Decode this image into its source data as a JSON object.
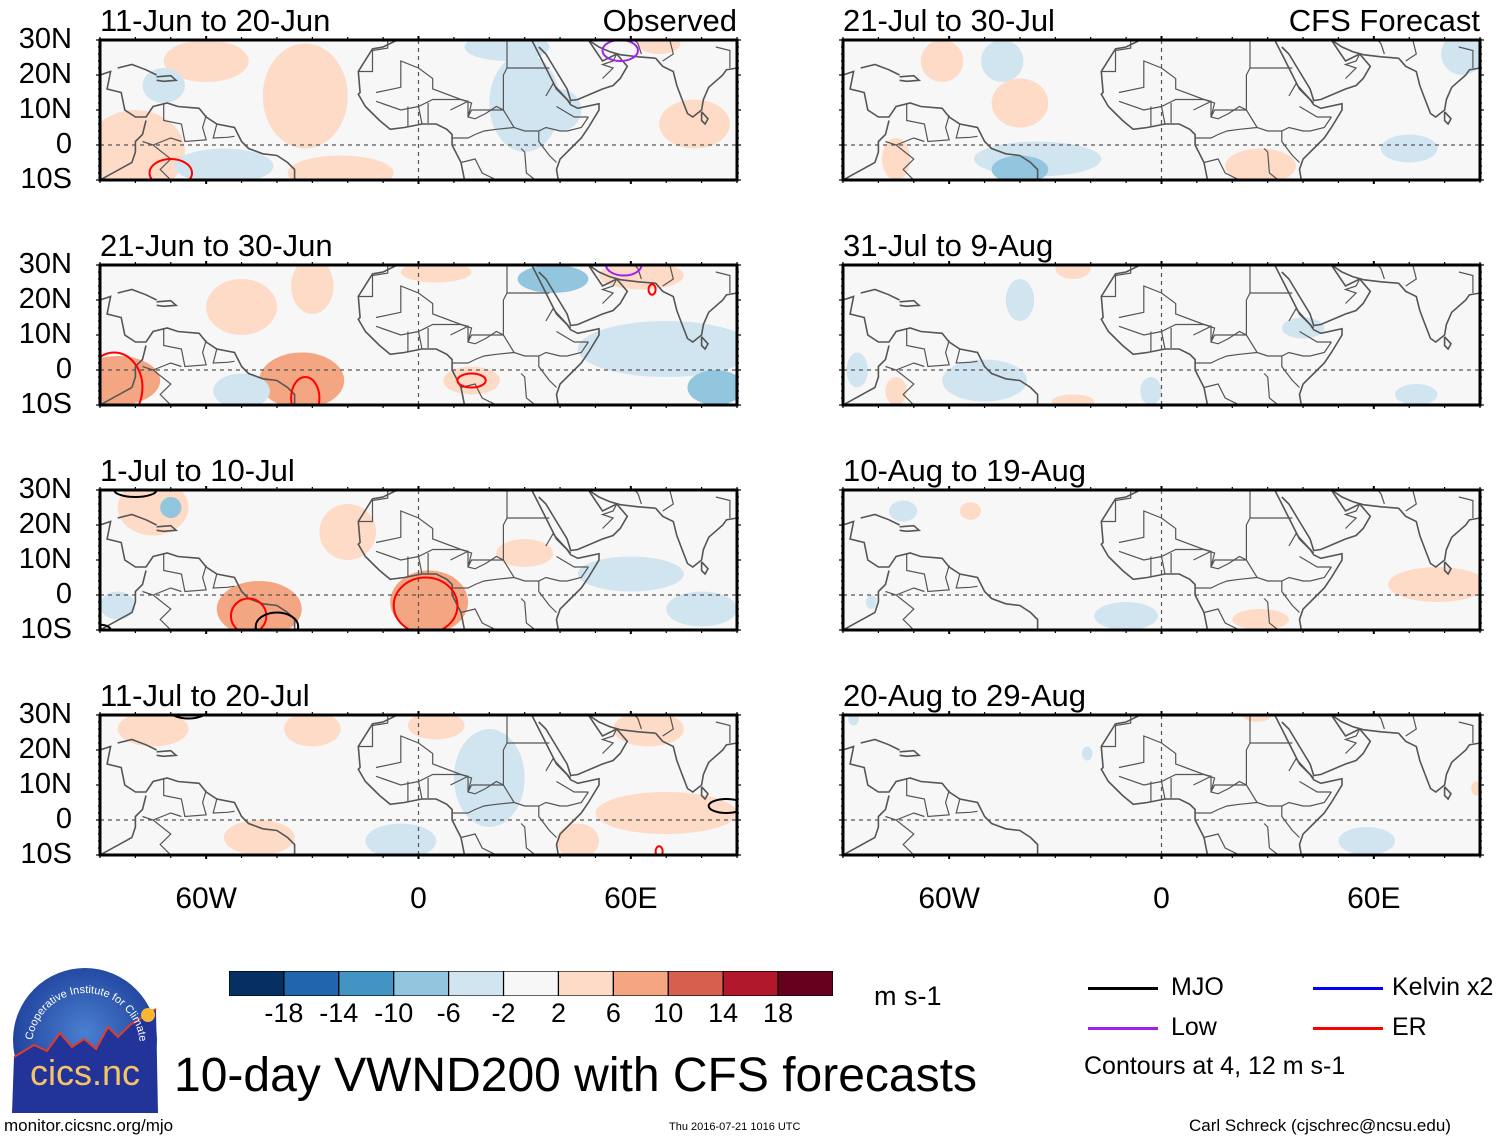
{
  "chart_data": {
    "type": "heatmap",
    "title": "10-day VWND200 with CFS forecasts",
    "variable": "VWND200 anomaly",
    "units": "m s-1",
    "lon_range": [
      -90,
      90
    ],
    "lat_range": [
      -10,
      30
    ],
    "lat_ticks": [
      {
        "value": 30,
        "label": "30N"
      },
      {
        "value": 20,
        "label": "20N"
      },
      {
        "value": 10,
        "label": "10N"
      },
      {
        "value": 0,
        "label": "0"
      },
      {
        "value": -10,
        "label": "10S"
      }
    ],
    "lon_ticks": [
      {
        "value": -60,
        "label": "60W"
      },
      {
        "value": 0,
        "label": "0"
      },
      {
        "value": 60,
        "label": "60E"
      }
    ],
    "colorbar": {
      "levels": [
        "-18",
        "-14",
        "-10",
        "-6",
        "-2",
        "2",
        "6",
        "10",
        "14",
        "18"
      ],
      "colors": [
        "#053061",
        "#2166ac",
        "#4393c3",
        "#92c5de",
        "#d1e5f0",
        "#f7f7f7",
        "#fddbc7",
        "#f4a582",
        "#d6604d",
        "#b2182b",
        "#67001f"
      ]
    },
    "contour_legend": [
      {
        "name": "MJO",
        "color": "#000000"
      },
      {
        "name": "Kelvin x2",
        "color": "#0000ff"
      },
      {
        "name": "Low",
        "color": "#a020f0"
      },
      {
        "name": "ER",
        "color": "#ff0000"
      }
    ],
    "contour_note": "Contours at 4, 12 m s-1",
    "columns": [
      {
        "tag": "Observed"
      },
      {
        "tag": "CFS Forecast"
      }
    ],
    "panels": [
      {
        "column": 0,
        "row": 0,
        "period": "11-Jun to 20-Jun",
        "anomalies": [
          {
            "lon": -60,
            "lat": 24,
            "rlon": 12,
            "rlat": 6,
            "value": 3
          },
          {
            "lon": -32,
            "lat": 14,
            "rlon": 12,
            "rlat": 15,
            "value": 3
          },
          {
            "lon": -80,
            "lat": -2,
            "rlon": 14,
            "rlat": 12,
            "value": 3
          },
          {
            "lon": -22,
            "lat": -8,
            "rlon": 15,
            "rlat": 5,
            "value": 3
          },
          {
            "lon": -55,
            "lat": -6,
            "rlon": 14,
            "rlat": 5,
            "value": -4
          },
          {
            "lon": -72,
            "lat": 17,
            "rlon": 6,
            "rlat": 5,
            "value": -4
          },
          {
            "lon": 30,
            "lat": 12,
            "rlon": 10,
            "rlat": 14,
            "value": -4
          },
          {
            "lon": 40,
            "lat": 10,
            "rlon": 6,
            "rlat": 6,
            "value": -4
          },
          {
            "lon": 78,
            "lat": 6,
            "rlon": 10,
            "rlat": 7,
            "value": 3
          },
          {
            "lon": 25,
            "lat": 28,
            "rlon": 12,
            "rlat": 4,
            "value": -3
          },
          {
            "lon": 68,
            "lat": 29,
            "rlon": 6,
            "rlat": 3,
            "value": 3
          }
        ],
        "contours": [
          {
            "type": "ER",
            "lon": -70,
            "lat": -8,
            "rlon": 6,
            "rlat": 4
          },
          {
            "type": "Low",
            "lon": 57,
            "lat": 27,
            "rlon": 5,
            "rlat": 3
          }
        ]
      },
      {
        "column": 0,
        "row": 1,
        "period": "21-Jun to 30-Jun",
        "anomalies": [
          {
            "lon": -85,
            "lat": -3,
            "rlon": 12,
            "rlat": 7,
            "value": 7
          },
          {
            "lon": -50,
            "lat": 18,
            "rlon": 10,
            "rlat": 8,
            "value": 4
          },
          {
            "lon": -30,
            "lat": 24,
            "rlon": 6,
            "rlat": 8,
            "value": 6
          },
          {
            "lon": -33,
            "lat": -3,
            "rlon": 12,
            "rlat": 8,
            "value": 7
          },
          {
            "lon": -50,
            "lat": -6,
            "rlon": 8,
            "rlat": 5,
            "value": -4
          },
          {
            "lon": 5,
            "lat": 28,
            "rlon": 10,
            "rlat": 3,
            "value": 3
          },
          {
            "lon": 70,
            "lat": 6,
            "rlon": 25,
            "rlat": 8,
            "value": -4
          },
          {
            "lon": 84,
            "lat": -5,
            "rlon": 8,
            "rlat": 5,
            "value": -8
          },
          {
            "lon": 63,
            "lat": 27,
            "rlon": 12,
            "rlat": 4,
            "value": 6
          },
          {
            "lon": 38,
            "lat": 26,
            "rlon": 10,
            "rlat": 4,
            "value": -6
          },
          {
            "lon": 15,
            "lat": -3,
            "rlon": 8,
            "rlat": 4,
            "value": 3
          }
        ],
        "contours": [
          {
            "type": "ER",
            "lon": -86,
            "lat": -5,
            "rlon": 8,
            "rlat": 10
          },
          {
            "type": "ER",
            "lon": -32,
            "lat": -8,
            "rlon": 4,
            "rlat": 6
          },
          {
            "type": "ER",
            "lon": 15,
            "lat": -3,
            "rlon": 4,
            "rlat": 2
          },
          {
            "type": "Low",
            "lon": 58,
            "lat": 30,
            "rlon": 5,
            "rlat": 3
          },
          {
            "type": "ER",
            "lon": 66,
            "lat": 23,
            "rlon": 1,
            "rlat": 1.5
          }
        ]
      },
      {
        "column": 0,
        "row": 2,
        "period": "1-Jul to 10-Jul",
        "anomalies": [
          {
            "lon": -75,
            "lat": 25,
            "rlon": 10,
            "rlat": 8,
            "value": 5
          },
          {
            "lon": -45,
            "lat": -4,
            "rlon": 12,
            "rlat": 8,
            "value": 8
          },
          {
            "lon": 3,
            "lat": -2,
            "rlon": 11,
            "rlat": 9,
            "value": 9
          },
          {
            "lon": -20,
            "lat": 18,
            "rlon": 8,
            "rlat": 8,
            "value": 3
          },
          {
            "lon": 30,
            "lat": 12,
            "rlon": 8,
            "rlat": 4,
            "value": 3
          },
          {
            "lon": 60,
            "lat": 6,
            "rlon": 15,
            "rlat": 5,
            "value": -4
          },
          {
            "lon": 80,
            "lat": -4,
            "rlon": 10,
            "rlat": 5,
            "value": -4
          },
          {
            "lon": -85,
            "lat": -3,
            "rlon": 5,
            "rlat": 4,
            "value": -4
          },
          {
            "lon": -70,
            "lat": 25,
            "rlon": 3,
            "rlat": 3,
            "value": -6
          }
        ],
        "contours": [
          {
            "type": "MJO",
            "lon": -80,
            "lat": 30,
            "rlon": 6,
            "rlat": 2
          },
          {
            "type": "ER",
            "lon": -48,
            "lat": -6,
            "rlon": 5,
            "rlat": 5
          },
          {
            "type": "MJO",
            "lon": -40,
            "lat": -9,
            "rlon": 6,
            "rlat": 4
          },
          {
            "type": "ER",
            "lon": 2,
            "lat": -3,
            "rlon": 9,
            "rlat": 8
          },
          {
            "type": "MJO",
            "lon": -90,
            "lat": -10,
            "rlon": 3,
            "rlat": 1.5
          }
        ]
      },
      {
        "column": 0,
        "row": 3,
        "period": "11-Jul to 20-Jul",
        "anomalies": [
          {
            "lon": -75,
            "lat": 26,
            "rlon": 10,
            "rlat": 5,
            "value": 4
          },
          {
            "lon": -30,
            "lat": 26,
            "rlon": 8,
            "rlat": 5,
            "value": 3
          },
          {
            "lon": 5,
            "lat": 27,
            "rlon": 8,
            "rlat": 4,
            "value": 3
          },
          {
            "lon": 20,
            "lat": 12,
            "rlon": 10,
            "rlat": 14,
            "value": -4
          },
          {
            "lon": -5,
            "lat": -6,
            "rlon": 10,
            "rlat": 5,
            "value": -4
          },
          {
            "lon": -45,
            "lat": -5,
            "rlon": 10,
            "rlat": 5,
            "value": 3
          },
          {
            "lon": 70,
            "lat": 2,
            "rlon": 20,
            "rlat": 6,
            "value": 4
          },
          {
            "lon": 45,
            "lat": -6,
            "rlon": 6,
            "rlat": 5,
            "value": 3
          },
          {
            "lon": 65,
            "lat": 26,
            "rlon": 10,
            "rlat": 5,
            "value": 4
          }
        ],
        "contours": [
          {
            "type": "MJO",
            "lon": -65,
            "lat": 31,
            "rlon": 5,
            "rlat": 2
          },
          {
            "type": "MJO",
            "lon": 87,
            "lat": 4,
            "rlon": 5,
            "rlat": 2
          },
          {
            "type": "ER",
            "lon": 68,
            "lat": -9,
            "rlon": 1,
            "rlat": 1.5
          }
        ]
      },
      {
        "column": 1,
        "row": 0,
        "period": "21-Jul to 30-Jul",
        "anomalies": [
          {
            "lon": -62,
            "lat": 24,
            "rlon": 6,
            "rlat": 6,
            "value": 3
          },
          {
            "lon": -40,
            "lat": 12,
            "rlon": 8,
            "rlat": 7,
            "value": 3
          },
          {
            "lon": -45,
            "lat": 24,
            "rlon": 6,
            "rlat": 6,
            "value": -3
          },
          {
            "lon": -35,
            "lat": -4,
            "rlon": 18,
            "rlat": 5,
            "value": -4
          },
          {
            "lon": -40,
            "lat": -7,
            "rlon": 8,
            "rlat": 4,
            "value": -7
          },
          {
            "lon": -75,
            "lat": -4,
            "rlon": 4,
            "rlat": 6,
            "value": 3
          },
          {
            "lon": 28,
            "lat": -6,
            "rlon": 10,
            "rlat": 5,
            "value": 3
          },
          {
            "lon": 70,
            "lat": -1,
            "rlon": 8,
            "rlat": 4,
            "value": -3
          },
          {
            "lon": 85,
            "lat": 26,
            "rlon": 6,
            "rlat": 6,
            "value": -3
          }
        ],
        "contours": []
      },
      {
        "column": 1,
        "row": 1,
        "period": "31-Jul to 9-Aug",
        "anomalies": [
          {
            "lon": -40,
            "lat": 20,
            "rlon": 4,
            "rlat": 6,
            "value": -3
          },
          {
            "lon": -25,
            "lat": 29,
            "rlon": 5,
            "rlat": 3,
            "value": 3
          },
          {
            "lon": -50,
            "lat": -3,
            "rlon": 12,
            "rlat": 6,
            "value": -3
          },
          {
            "lon": -75,
            "lat": -6,
            "rlon": 3,
            "rlat": 4,
            "value": 3
          },
          {
            "lon": -25,
            "lat": -9,
            "rlon": 6,
            "rlat": 2,
            "value": 3
          },
          {
            "lon": -3,
            "lat": -6,
            "rlon": 3,
            "rlat": 4,
            "value": -3
          },
          {
            "lon": 40,
            "lat": 12,
            "rlon": 6,
            "rlat": 3,
            "value": -3
          },
          {
            "lon": 72,
            "lat": -7,
            "rlon": 6,
            "rlat": 3,
            "value": -3
          },
          {
            "lon": -86,
            "lat": 0,
            "rlon": 3,
            "rlat": 5,
            "value": -3
          }
        ],
        "contours": []
      },
      {
        "column": 1,
        "row": 2,
        "period": "10-Aug to 19-Aug",
        "anomalies": [
          {
            "lon": -73,
            "lat": 24,
            "rlon": 4,
            "rlat": 3,
            "value": -3
          },
          {
            "lon": -54,
            "lat": 24,
            "rlon": 3,
            "rlat": 2.5,
            "value": 3
          },
          {
            "lon": -10,
            "lat": -6,
            "rlon": 9,
            "rlat": 4,
            "value": -3
          },
          {
            "lon": 28,
            "lat": -7,
            "rlon": 8,
            "rlat": 3,
            "value": 3
          },
          {
            "lon": 78,
            "lat": 3,
            "rlon": 14,
            "rlat": 5,
            "value": 3
          },
          {
            "lon": -82,
            "lat": -2,
            "rlon": 1.5,
            "rlat": 2,
            "value": -3
          }
        ],
        "contours": []
      },
      {
        "column": 1,
        "row": 3,
        "period": "20-Aug to 29-Aug",
        "anomalies": [
          {
            "lon": -87,
            "lat": 29,
            "rlon": 1.5,
            "rlat": 2,
            "value": -3
          },
          {
            "lon": -21,
            "lat": 19,
            "rlon": 1.5,
            "rlat": 2,
            "value": -3
          },
          {
            "lon": 27,
            "lat": 30,
            "rlon": 4,
            "rlat": 2,
            "value": 3
          },
          {
            "lon": 58,
            "lat": -6,
            "rlon": 8,
            "rlat": 4,
            "value": -3
          },
          {
            "lon": 89,
            "lat": 9,
            "rlon": 1.5,
            "rlat": 2,
            "value": 3
          }
        ],
        "contours": []
      }
    ]
  },
  "branding": {
    "logo_text": "cics.nc",
    "logo_ring_text": "Cooperative Institute for Climate and Satellites"
  },
  "footer": {
    "url": "monitor.cicsnc.org/mjo",
    "timestamp": "Thu 2016-07-21 1016 UTC",
    "author": "Carl Schreck (cjschrec@ncsu.edu)"
  }
}
